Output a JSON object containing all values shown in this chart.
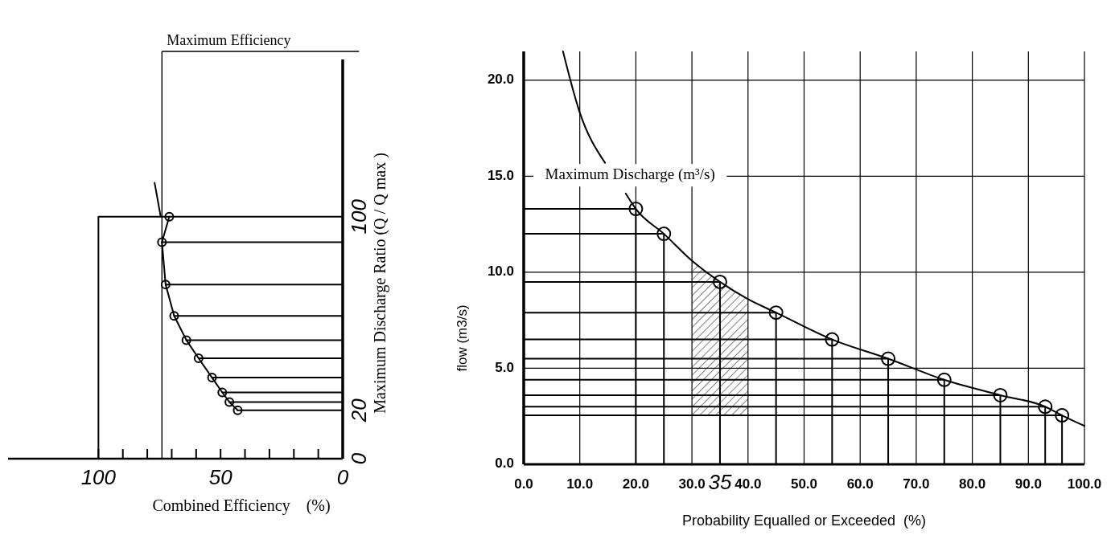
{
  "chart_data": [
    {
      "type": "line",
      "xlabel": "Combined Efficiency    (%)",
      "ylabel": "Maximum Discharge Ratio (Q / Q max )",
      "xlim": [
        137,
        0
      ],
      "xticks": [
        {
          "value": 0,
          "label": "0"
        },
        {
          "value": 10,
          "label": null
        },
        {
          "value": 20,
          "label": null
        },
        {
          "value": 30,
          "label": null
        },
        {
          "value": 40,
          "label": null
        },
        {
          "value": 50,
          "label": "50"
        },
        {
          "value": 60,
          "label": null
        },
        {
          "value": 70,
          "label": null
        },
        {
          "value": 80,
          "label": null
        },
        {
          "value": 90,
          "label": null
        },
        {
          "value": 100,
          "label": "100"
        }
      ],
      "ylim": [
        0,
        165
      ],
      "yticks": [
        0,
        20,
        100
      ],
      "grid": false,
      "series": [
        {
          "x": [
            71,
            74,
            72.5,
            69,
            64,
            59,
            53.5,
            49.3,
            46.4,
            43
          ],
          "values": [
            100,
            89.5,
            72,
            59,
            49,
            41.5,
            33.5,
            27.4,
            23.4,
            20
          ],
          "color": "#000000"
        },
        {
          "x": [
            77,
            74.5
          ],
          "values": [
            114,
            100
          ],
          "color": "#000000"
        },
        {
          "x": [
            100,
            100,
            0
          ],
          "values": [
            0,
            100,
            100
          ],
          "color": "#000000"
        },
        {
          "x": [
            74,
            0
          ],
          "values": [
            89.5,
            89.5
          ],
          "color": "#000000"
        },
        {
          "x": [
            72.5,
            0
          ],
          "values": [
            72,
            72
          ],
          "color": "#000000"
        },
        {
          "x": [
            69,
            0
          ],
          "values": [
            59,
            59
          ],
          "color": "#000000"
        },
        {
          "x": [
            64,
            0
          ],
          "values": [
            49,
            49
          ],
          "color": "#000000"
        },
        {
          "x": [
            59,
            0
          ],
          "values": [
            41.5,
            41.5
          ],
          "color": "#000000"
        },
        {
          "x": [
            53.5,
            0
          ],
          "values": [
            33.5,
            33.5
          ],
          "color": "#000000"
        },
        {
          "x": [
            49.3,
            0
          ],
          "values": [
            27.4,
            27.4
          ],
          "color": "#000000"
        },
        {
          "x": [
            46.4,
            0
          ],
          "values": [
            23.4,
            23.4
          ],
          "color": "#000000"
        },
        {
          "x": [
            43,
            0
          ],
          "values": [
            20,
            20
          ],
          "color": "#000000"
        },
        {
          "type": "scatter",
          "marker": "circle",
          "x": [
            71,
            74,
            72.5,
            69,
            64,
            59,
            53.5,
            49.3,
            46.4,
            43
          ],
          "values": [
            100,
            89.5,
            72,
            59,
            49,
            41.5,
            33.5,
            27.4,
            23.4,
            20
          ],
          "color": "#000000"
        }
      ],
      "ref_lines": [
        {
          "axis": "x",
          "value": 74,
          "label": "Maximum Efficiency"
        }
      ]
    },
    {
      "type": "line",
      "xlabel": "Probability Equalled or Exceeded  (%)",
      "ylabel": "flow (m3/s)",
      "xlim": [
        0,
        100
      ],
      "xticks": [
        {
          "value": 0,
          "label": "0.0"
        },
        {
          "value": 10,
          "label": "10.0"
        },
        {
          "value": 20,
          "label": "20.0"
        },
        {
          "value": 30,
          "label": "30.0"
        },
        {
          "value": 40,
          "label": "40.0"
        },
        {
          "value": 50,
          "label": "50.0"
        },
        {
          "value": 60,
          "label": "60.0"
        },
        {
          "value": 70,
          "label": "70.0"
        },
        {
          "value": 80,
          "label": "80.0"
        },
        {
          "value": 90,
          "label": "90.0"
        },
        {
          "value": 100,
          "label": "100.0"
        }
      ],
      "ylim": [
        0,
        21.5
      ],
      "yticks": [
        {
          "value": 0,
          "label": "0.0"
        },
        {
          "value": 5,
          "label": "5.0"
        },
        {
          "value": 10,
          "label": "10.0"
        },
        {
          "value": 15,
          "label": "15.0"
        },
        {
          "value": 20,
          "label": "20.0"
        }
      ],
      "grid": true,
      "series": [
        {
          "color": "#000000",
          "x": [
            7,
            9.9,
            14.5,
            16.5,
            18.2,
            20,
            25,
            30,
            35,
            40,
            45,
            55,
            65,
            75,
            85,
            93,
            96,
            100
          ],
          "values": [
            21.5,
            18.4,
            15.7,
            null,
            14.1,
            13.3,
            12.0,
            10.6,
            9.5,
            8.6,
            7.9,
            6.5,
            5.5,
            4.4,
            3.6,
            3.0,
            2.55,
            2.0
          ]
        },
        {
          "color": "#000000",
          "x": [
            0,
            20,
            20
          ],
          "values": [
            13.3,
            13.3,
            0
          ]
        },
        {
          "color": "#000000",
          "x": [
            0,
            25,
            25
          ],
          "values": [
            12.0,
            12.0,
            0
          ]
        },
        {
          "color": "#000000",
          "x": [
            0,
            35,
            35
          ],
          "values": [
            9.5,
            9.5,
            0
          ]
        },
        {
          "color": "#000000",
          "x": [
            0,
            45,
            45
          ],
          "values": [
            7.9,
            7.9,
            0
          ]
        },
        {
          "color": "#000000",
          "x": [
            0,
            55,
            55
          ],
          "values": [
            6.5,
            6.5,
            0
          ]
        },
        {
          "color": "#000000",
          "x": [
            0,
            65,
            65
          ],
          "values": [
            5.5,
            5.5,
            0
          ]
        },
        {
          "color": "#000000",
          "x": [
            0,
            75,
            75
          ],
          "values": [
            4.4,
            4.4,
            0
          ]
        },
        {
          "color": "#000000",
          "x": [
            0,
            85,
            85
          ],
          "values": [
            3.6,
            3.6,
            0
          ]
        },
        {
          "color": "#000000",
          "x": [
            0,
            93,
            93
          ],
          "values": [
            3.0,
            3.0,
            0
          ]
        },
        {
          "color": "#000000",
          "x": [
            0,
            96,
            96
          ],
          "values": [
            2.55,
            2.55,
            0
          ]
        },
        {
          "type": "scatter",
          "marker": "circle",
          "color": "#000000",
          "x": [
            20,
            25,
            35,
            45,
            55,
            65,
            75,
            85,
            93,
            96
          ],
          "values": [
            13.3,
            12.0,
            9.5,
            7.9,
            6.5,
            5.5,
            4.4,
            3.6,
            3.0,
            2.55
          ]
        }
      ],
      "bands": [
        {
          "axis": "x",
          "from": 30,
          "to": 40,
          "color": "#000000"
        }
      ],
      "annotations": [
        "Maximum Discharge (m³/s)",
        {
          "text": "35",
          "x": 35,
          "y": 0
        }
      ]
    }
  ]
}
